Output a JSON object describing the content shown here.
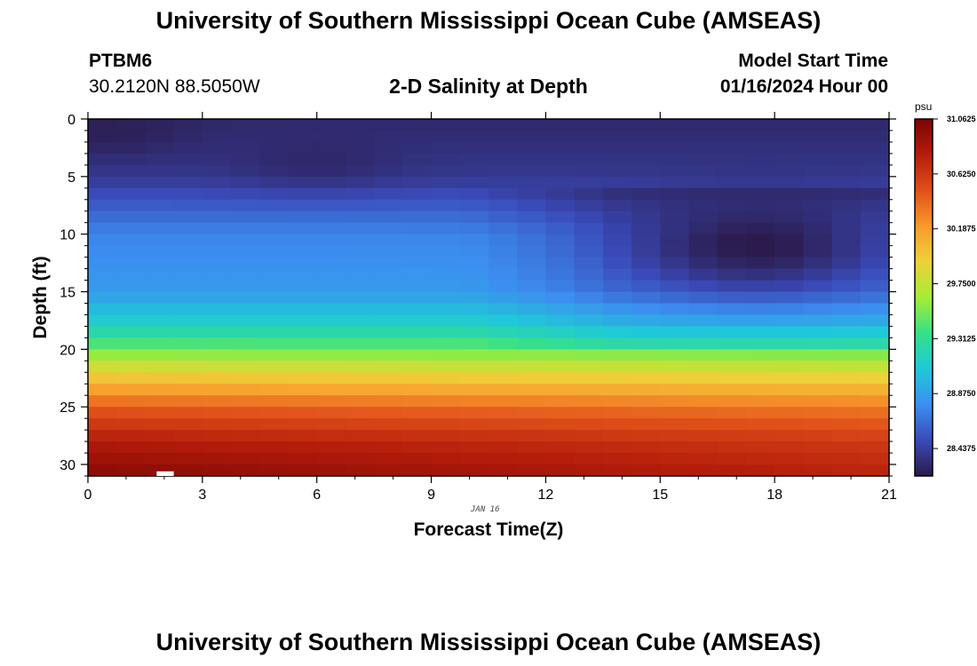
{
  "page": {
    "title": "University of Southern Mississippi Ocean Cube (AMSEAS)",
    "title_repeat": "University of Southern Mississippi Ocean Cube (AMSEAS)",
    "station_id": "PTBM6",
    "station_coords": "30.2120N  88.5050W",
    "subtitle": "2-D Salinity at Depth",
    "model_start_label": "Model Start Time",
    "model_start_value": "01/16/2024 Hour 00",
    "date_tag": "JAN 16"
  },
  "chart_data": {
    "type": "heatmap",
    "title": "2-D Salinity at Depth",
    "xlabel": "Forecast Time(Z)",
    "ylabel": "Depth (ft)",
    "xlim": [
      0,
      21
    ],
    "ylim": [
      31,
      0
    ],
    "xticks": [
      0,
      3,
      6,
      9,
      12,
      15,
      18,
      21
    ],
    "yticks": [
      0,
      5,
      10,
      15,
      20,
      25,
      30
    ],
    "units": "psu",
    "colorbar": {
      "label": "psu",
      "range": [
        28.2188,
        31.0625
      ],
      "ticks": [
        "31.0625",
        "30.6250",
        "30.1875",
        "29.7500",
        "29.3125",
        "28.8750",
        "28.4375"
      ],
      "colors": [
        "#2b1a4a",
        "#3a4ab8",
        "#3c8ef0",
        "#1fc9d8",
        "#35e08a",
        "#a6ec35",
        "#eed13a",
        "#f99a2c",
        "#e0501a",
        "#b51d0b",
        "#7a0404"
      ]
    },
    "x_cells": [
      0,
      0.75,
      1.5,
      2.25,
      3,
      3.75,
      4.5,
      5.25,
      6,
      6.75,
      7.5,
      8.25,
      9,
      9.75,
      10.5,
      11.25,
      12,
      12.75,
      13.5,
      14.25,
      15,
      15.75,
      16.5,
      17.25,
      18,
      18.75,
      19.5,
      20.25,
      21
    ],
    "y_cells": [
      0,
      1,
      2,
      3,
      4,
      5,
      6,
      7,
      8,
      9,
      10,
      11,
      12,
      13,
      14,
      15,
      16,
      17,
      18,
      19,
      20,
      21,
      22,
      23,
      24,
      25,
      26,
      27,
      28,
      29,
      30,
      31
    ],
    "field_description": "salinity (psu) by depth and forecast hour",
    "surface_profile": [
      {
        "depth": 0,
        "value": 28.3
      },
      {
        "depth": 5,
        "value": 28.4
      },
      {
        "depth": 10,
        "value": 28.75
      },
      {
        "depth": 15,
        "value": 28.85
      },
      {
        "depth": 18,
        "value": 29.15
      },
      {
        "depth": 20,
        "value": 29.5
      },
      {
        "depth": 22,
        "value": 29.9
      },
      {
        "depth": 25,
        "value": 30.45
      },
      {
        "depth": 28,
        "value": 30.8
      },
      {
        "depth": 31,
        "value": 31.0
      }
    ],
    "low_salinity_cores": [
      {
        "time": 0.5,
        "depth": 1,
        "value": 28.25
      },
      {
        "time": 6,
        "depth": 3.5,
        "value": 28.3
      },
      {
        "time": 17.5,
        "depth": 11,
        "value": 28.22
      }
    ]
  }
}
